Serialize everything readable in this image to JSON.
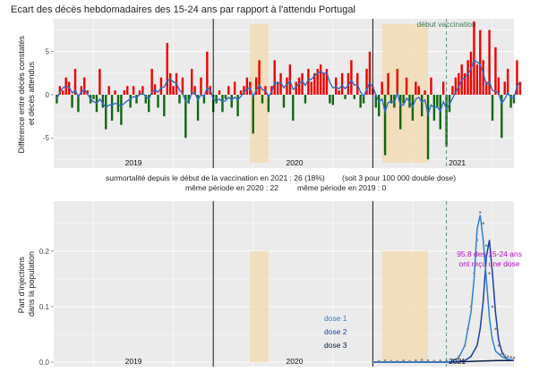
{
  "chart_data": [
    {
      "type": "bar",
      "title": "Ecart des décès hebdomadaires des 15-24 ans par rapport à l'attendu Portugal",
      "ylabel_lines": [
        "Différence entre décès constatés",
        "et décès attendus"
      ],
      "ylim": [
        -8.5,
        8.8
      ],
      "yticks": [
        5,
        0,
        -5
      ],
      "xlim": [
        0,
        150
      ],
      "year_labels": [
        {
          "text": "2019",
          "x": 26
        },
        {
          "text": "2020",
          "x": 78.5
        },
        {
          "text": "2021",
          "x": 131.5
        }
      ],
      "year_boundaries": [
        52,
        104
      ],
      "vaccination_line": {
        "x": 128,
        "label": "début vaccination"
      },
      "shaded_periods": [
        [
          64,
          70
        ],
        [
          107,
          122
        ]
      ],
      "colors": {
        "positive": "#ee0000",
        "negative": "#116611",
        "smooth": "#2c6dc4",
        "shade": "#f2dcb5",
        "vline": "#558866",
        "panel": "#ebebeb",
        "grid": "#ffffff"
      },
      "values": [
        -1,
        1,
        0.5,
        2,
        1.5,
        -1.5,
        3,
        -2,
        1,
        2,
        0.5,
        -1,
        -0.5,
        -2,
        3,
        -1.5,
        -4,
        1,
        -3,
        0.5,
        -2,
        -3.5,
        0.5,
        1,
        -1.5,
        1,
        -1,
        0.5,
        1,
        -1,
        -2,
        3,
        1.2,
        -1.5,
        2,
        -2.5,
        6,
        2.5,
        1,
        2.5,
        -1,
        2,
        -5,
        -1,
        3,
        1,
        -3,
        2,
        -1,
        5,
        1,
        -2,
        -1,
        0.5,
        -2,
        -0.5,
        1,
        -1.5,
        1.5,
        -2.5,
        0.5,
        1,
        2,
        1.5,
        -4.5,
        2,
        4,
        -1,
        1,
        -2,
        1,
        4,
        1.5,
        2.5,
        -1.5,
        2,
        3.5,
        -3,
        1.5,
        2,
        2.5,
        -1,
        3,
        1.5,
        2.5,
        3,
        3.5,
        2.5,
        3,
        -1,
        -1.2,
        2,
        0.5,
        2.5,
        -0.5,
        2.5,
        4,
        -0.5,
        2.5,
        -1.5,
        -1,
        3,
        5,
        1,
        -1.5,
        -2.5,
        1.5,
        -7,
        2.5,
        -1,
        -1.5,
        3,
        -4,
        -1,
        2,
        -1.5,
        -3,
        1.5,
        1,
        -2.5,
        0.5,
        -7.5,
        2,
        -3,
        -1.5,
        -4,
        1.5,
        -6,
        -2,
        1,
        2,
        2.5,
        3.5,
        2.5,
        4,
        5,
        8.5,
        3.5,
        7.5,
        4,
        1.5,
        7.5,
        -3,
        5.5,
        2,
        -5,
        1.5,
        3,
        -1.5,
        -1,
        4,
        1.5
      ],
      "smooth": [
        -0.5,
        0.3,
        0.8,
        1,
        0.9,
        0.2,
        0.5,
        -0.2,
        0.3,
        0.6,
        0.1,
        -0.5,
        -0.8,
        -1,
        -0.5,
        -1,
        -1.5,
        -1.2,
        -1.2,
        -1,
        -1.1,
        -1.3,
        -1,
        -0.7,
        -0.5,
        -0.2,
        -0.3,
        0,
        0.2,
        -0.2,
        -0.5,
        0.3,
        0.6,
        0.3,
        0.8,
        0.9,
        1.6,
        1.8,
        1.5,
        1.3,
        0.5,
        0.2,
        -0.8,
        -0.8,
        0.2,
        0.2,
        -0.6,
        0,
        -0.2,
        0.8,
        0.6,
        -0.5,
        -0.7,
        -0.5,
        -0.8,
        -0.7,
        -0.3,
        -0.6,
        -0.3,
        -0.6,
        -0.2,
        0.3,
        0.7,
        0.8,
        -0.2,
        0.5,
        1.1,
        0.6,
        0.5,
        -0.2,
        0.3,
        1.4,
        1.3,
        1.4,
        0.8,
        1.2,
        1.6,
        0.6,
        0.9,
        1.3,
        1.6,
        1.1,
        1.7,
        1.8,
        2.2,
        2.5,
        2.7,
        2.5,
        2.5,
        1.4,
        0.8,
        0.9,
        0.7,
        1.1,
        0.7,
        1.1,
        1.7,
        1.1,
        1.2,
        0.3,
        -0.2,
        0.6,
        1.4,
        0.9,
        0,
        -0.8,
        -0.5,
        -2,
        -0.9,
        -0.8,
        -0.9,
        0.2,
        -1.2,
        -1.2,
        -0.4,
        -0.8,
        -1.4,
        -0.5,
        -0.3,
        -0.9,
        -0.6,
        -2.3,
        -1.2,
        -1.5,
        -1.4,
        -1.9,
        -0.8,
        -1.6,
        -1.1,
        -0.4,
        0.3,
        0.9,
        1.7,
        2,
        2.4,
        3,
        4,
        3.8,
        3.5,
        2.5,
        1.2,
        1.5,
        0.5,
        0.4,
        0.2,
        -1,
        -0.5,
        0.2,
        -0.3,
        -0.4,
        1,
        1.5
      ]
    },
    {
      "type": "line",
      "ylabel_lines": [
        "Part d'injections",
        "dans la population"
      ],
      "ylim": [
        -0.008,
        0.29
      ],
      "yticks": [
        0.0,
        0.1,
        0.2
      ],
      "ytick_labels": [
        "0.0",
        "0.1",
        "0.2"
      ],
      "xlim": [
        0,
        150
      ],
      "year_labels": [
        {
          "text": "2019",
          "x": 26
        },
        {
          "text": "2020",
          "x": 78.5
        },
        {
          "text": "2021",
          "x": 131.5
        }
      ],
      "year_boundaries": [
        52,
        104
      ],
      "vaccination_line": {
        "x": 128
      },
      "shaded_periods": [
        [
          64,
          70
        ],
        [
          107,
          122
        ]
      ],
      "annotation": {
        "line1": "95.8 des 15-24 ans",
        "line2": "ont reçu une dose",
        "x": 142,
        "y": 0.19,
        "color": "#b010c0"
      },
      "legend": [
        {
          "name": "dose 1",
          "color": "#2f7fd0"
        },
        {
          "name": "dose 2",
          "color": "#1a3ea8"
        },
        {
          "name": "dose 3",
          "color": "#061a40"
        }
      ],
      "series": [
        {
          "name": "dose 1",
          "color": "#2f7fd0",
          "x": [
            104,
            128,
            130,
            132,
            134,
            136,
            137,
            138,
            139,
            140,
            141,
            142,
            143,
            144,
            146,
            148,
            150
          ],
          "values": [
            0,
            0,
            0.002,
            0.008,
            0.03,
            0.09,
            0.15,
            0.24,
            0.265,
            0.22,
            0.15,
            0.08,
            0.04,
            0.02,
            0.01,
            0.005,
            0.004
          ]
        },
        {
          "name": "dose 2",
          "color": "#1a3ea8",
          "x": [
            104,
            130,
            134,
            136,
            138,
            139,
            140,
            141,
            142,
            143,
            144,
            145,
            146,
            147,
            148,
            150
          ],
          "values": [
            0,
            0,
            0.003,
            0.01,
            0.03,
            0.06,
            0.11,
            0.19,
            0.22,
            0.16,
            0.09,
            0.04,
            0.02,
            0.01,
            0.005,
            0.003
          ]
        },
        {
          "name": "dose 3",
          "color": "#061a40",
          "x": [
            104,
            120,
            130,
            140,
            145,
            150
          ],
          "values": [
            0,
            0,
            0,
            0.002,
            0.003,
            0.003
          ]
        }
      ],
      "points": {
        "color": "#888888",
        "x": [
          104,
          106,
          108,
          110,
          112,
          114,
          116,
          118,
          120,
          122,
          124,
          126,
          128,
          130,
          132,
          134,
          135,
          136,
          137,
          138,
          139,
          140,
          141,
          142,
          143,
          144,
          145,
          146,
          147,
          148,
          149,
          150
        ],
        "values": [
          0.001,
          0.002,
          0.003,
          0.002,
          0.002,
          0.003,
          0.002,
          0.003,
          0.004,
          0.003,
          0.002,
          0.003,
          0.003,
          0.004,
          0.01,
          0.03,
          0.06,
          0.1,
          0.16,
          0.22,
          0.27,
          0.25,
          0.21,
          0.16,
          0.1,
          0.06,
          0.03,
          0.015,
          0.012,
          0.01,
          0.009,
          0.008
        ]
      }
    }
  ],
  "caption": {
    "line1a": "surmortalité depuis le début de la vaccination en 2021 : 26  (18%)",
    "line1b": "(soit 3 pour 100 000 double dose)",
    "line2a": "même période en 2020 : 22",
    "line2b": "même période en 2019 : 0"
  }
}
